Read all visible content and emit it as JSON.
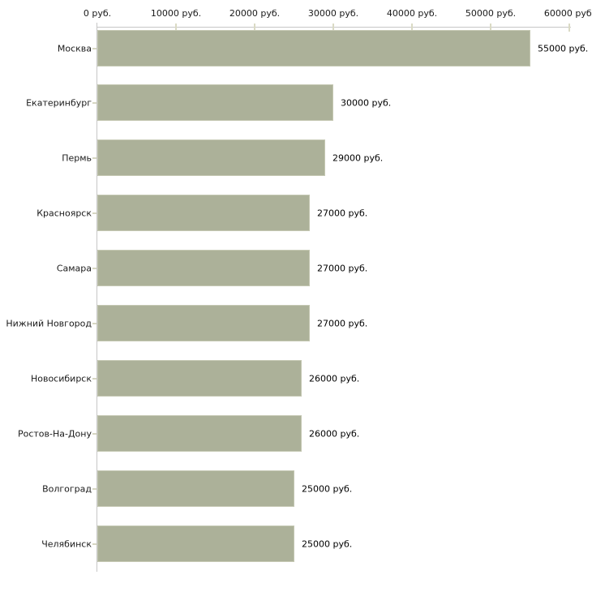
{
  "chart_data": {
    "type": "bar",
    "orientation": "horizontal",
    "title": "",
    "xlabel": "",
    "ylabel": "",
    "categories": [
      "Москва",
      "Екатеринбург",
      "Пермь",
      "Красноярск",
      "Самара",
      "Нижний Новгород",
      "Новосибирск",
      "Ростов-На-Дону",
      "Волгоград",
      "Челябинск"
    ],
    "values": [
      55000,
      30000,
      29000,
      27000,
      27000,
      27000,
      26000,
      26000,
      25000,
      25000
    ],
    "value_labels": [
      "55000 руб.",
      "30000 руб.",
      "29000 руб.",
      "27000 руб.",
      "27000 руб.",
      "27000 руб.",
      "26000 руб.",
      "26000 руб.",
      "25000 руб.",
      "25000 руб."
    ],
    "x_tick_labels": [
      "0 руб.",
      "10000 руб.",
      "20000 руб.",
      "30000 руб.",
      "40000 руб.",
      "50000 руб.",
      "60000 руб."
    ],
    "x_tick_values": [
      0,
      10000,
      20000,
      30000,
      40000,
      50000,
      60000
    ],
    "xlim": [
      0,
      60000
    ],
    "grid": false,
    "legend": false,
    "unit": "руб.",
    "bar_color": "#acb199",
    "bar_border_color": "#c5c8b3",
    "axis_line_color": "#c6c6c6",
    "tick_mark_color": "#dadac4",
    "text_color": "#1a1a1a"
  }
}
